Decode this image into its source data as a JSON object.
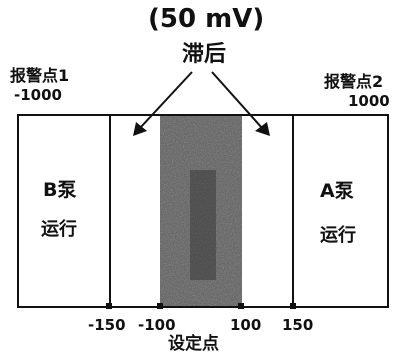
{
  "hysteresis_value": "(50 mV)",
  "hysteresis_label": "滞后",
  "alarm_left": {
    "label": "报警点1",
    "value": "-1000"
  },
  "alarm_right": {
    "label": "报警点2",
    "value": "1000"
  },
  "pump_b": {
    "name": "B泵",
    "status": "运行"
  },
  "pump_a": {
    "name": "A泵",
    "status": "运行"
  },
  "axis_ticks": [
    "-150",
    "-100",
    "100",
    "150"
  ],
  "setpoint_label": "设定点",
  "colors": {
    "line": "#111111",
    "band": "#555555",
    "background": "#ffffff"
  }
}
